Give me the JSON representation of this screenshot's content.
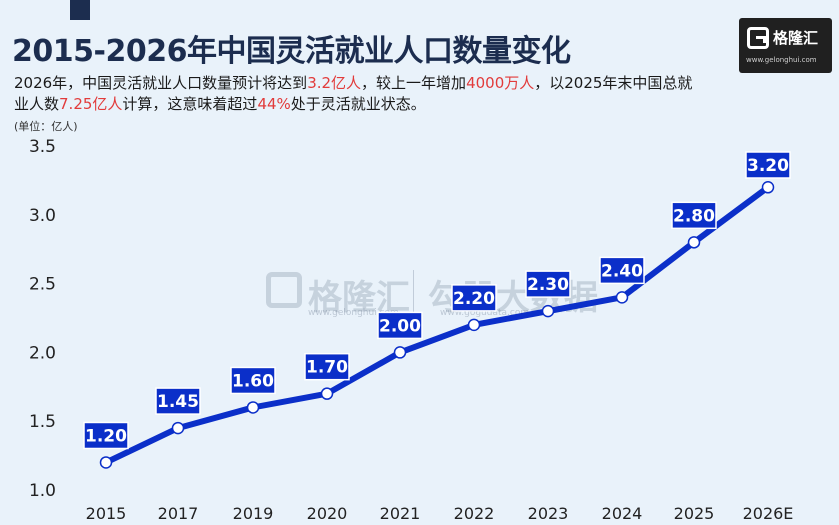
{
  "header": {
    "title": "2015-2026年中国灵活就业人口数量变化",
    "subtitle_parts": [
      {
        "text": "2026年，中国灵活就业人口数量预计将达到",
        "highlight": false
      },
      {
        "text": "3.2亿人",
        "highlight": true
      },
      {
        "text": "，较上一年增加",
        "highlight": false
      },
      {
        "text": "4000万人",
        "highlight": true
      },
      {
        "text": "，以2025年末中国总就业人数",
        "highlight": false
      },
      {
        "text": "7.25亿人",
        "highlight": true
      },
      {
        "text": "计算，这意味着超过",
        "highlight": false
      },
      {
        "text": "44%",
        "highlight": true
      },
      {
        "text": "处于灵活就业状态。",
        "highlight": false
      }
    ],
    "unit": "(单位：亿人)"
  },
  "logo": {
    "name": "格隆汇",
    "url": "www.gelonghui.com"
  },
  "watermark": {
    "brand1": "格隆汇",
    "brand1_url": "www.gelonghui.com",
    "brand2": "勾股大数据",
    "brand2_url": "www.gogudata.com"
  },
  "colors": {
    "line": "#0b2fc9",
    "label_bg": "#0b2fc9",
    "highlight": "#e23b3b",
    "title": "#1c2d4f"
  },
  "chart_data": {
    "type": "line",
    "title": "2015-2026年中国灵活就业人口数量变化",
    "ylabel": "(单位：亿人)",
    "xlabel": "",
    "categories": [
      "2015",
      "2017",
      "2019",
      "2020",
      "2021",
      "2022",
      "2023",
      "2024",
      "2025",
      "2026E"
    ],
    "values": [
      1.2,
      1.45,
      1.6,
      1.7,
      2.0,
      2.2,
      2.3,
      2.4,
      2.8,
      3.2
    ],
    "data_labels": [
      "1.20",
      "1.45",
      "1.60",
      "1.70",
      "2.00",
      "2.20",
      "2.30",
      "2.40",
      "2.80",
      "3.20"
    ],
    "ylim": [
      1.0,
      3.5
    ],
    "yticks": [
      1.0,
      1.5,
      2.0,
      2.5,
      3.0,
      3.5
    ],
    "ytick_labels": [
      "1.0",
      "1.5",
      "2.0",
      "2.5",
      "3.0",
      "3.5"
    ],
    "grid": false,
    "legend": "none"
  }
}
